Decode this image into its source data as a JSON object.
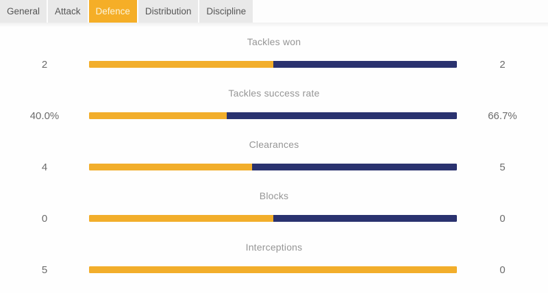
{
  "tabs": {
    "items": [
      {
        "label": "General",
        "active": false
      },
      {
        "label": "Attack",
        "active": false
      },
      {
        "label": "Defence",
        "active": true
      },
      {
        "label": "Distribution",
        "active": false
      },
      {
        "label": "Discipline",
        "active": false
      }
    ]
  },
  "colors": {
    "home_bar": "#F2AE2B",
    "away_bar": "#2A326F",
    "active_tab_bg": "#F5AE27",
    "active_tab_text": "#FCF5DC",
    "tab_bg": "#E9E9E9",
    "tab_text": "#555555",
    "stat_label_text": "#959595",
    "stat_value_text": "#6B6B6B"
  },
  "stats": [
    {
      "label": "Tackles won",
      "home": "2",
      "away": "2",
      "home_share": 50
    },
    {
      "label": "Tackles success rate",
      "home": "40.0%",
      "away": "66.7%",
      "home_share": 37.5
    },
    {
      "label": "Clearances",
      "home": "4",
      "away": "5",
      "home_share": 44.4
    },
    {
      "label": "Blocks",
      "home": "0",
      "away": "0",
      "home_share": 50
    },
    {
      "label": "Interceptions",
      "home": "5",
      "away": "0",
      "home_share": 100
    }
  ],
  "chart_data": {
    "type": "bar",
    "title": "Defence",
    "categories": [
      "Tackles won",
      "Tackles success rate",
      "Clearances",
      "Blocks",
      "Interceptions"
    ],
    "series": [
      {
        "name": "home",
        "color": "#F2AE2B",
        "values": [
          2,
          40.0,
          4,
          0,
          5
        ]
      },
      {
        "name": "away",
        "color": "#2A326F",
        "values": [
          2,
          66.7,
          5,
          0,
          0
        ]
      }
    ],
    "value_labels": {
      "home": [
        "2",
        "40.0%",
        "4",
        "0",
        "5"
      ],
      "away": [
        "2",
        "66.7%",
        "5",
        "0",
        "0"
      ]
    },
    "legend_position": "none",
    "grid": false
  }
}
